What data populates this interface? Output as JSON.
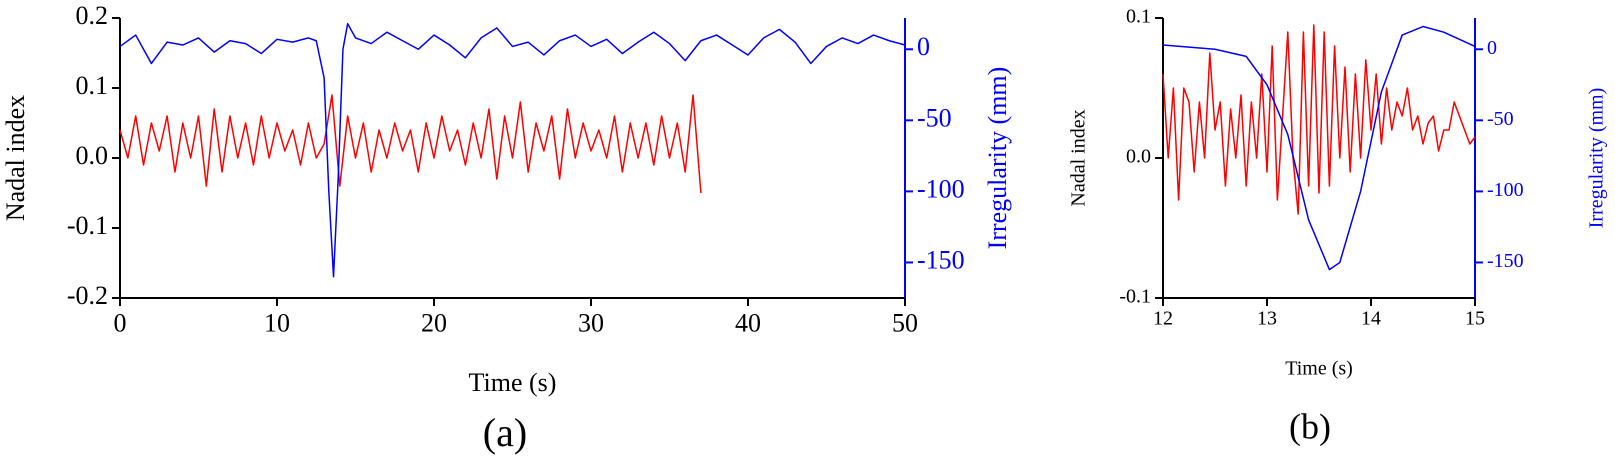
{
  "chart_data": [
    {
      "type": "line",
      "caption": "(a)",
      "xlabel": "Time (s)",
      "ylabel": "Nadal index",
      "y2label": "Irregularity (mm)",
      "xlim": [
        0,
        50
      ],
      "xticks": [
        0,
        10,
        20,
        30,
        40,
        50
      ],
      "ylim": [
        -0.2,
        0.2
      ],
      "yticks": [
        -0.2,
        -0.1,
        {
          "value": 0,
          "label": "0.0"
        },
        0.1,
        0.2
      ],
      "y2lim": [
        -175,
        22
      ],
      "y2ticks": [
        -150,
        -100,
        -50,
        0
      ],
      "series": [
        {
          "color": "#ff0000",
          "axis": "y",
          "x": [
            0,
            0.5,
            1,
            1.5,
            2,
            2.5,
            3,
            3.5,
            4,
            4.5,
            5,
            5.5,
            6,
            6.5,
            7,
            7.5,
            8,
            8.5,
            9,
            9.5,
            10,
            10.5,
            11,
            11.5,
            12,
            12.5,
            13,
            13.5,
            14,
            14.5,
            15,
            15.5,
            16,
            16.5,
            17,
            17.5,
            18,
            18.5,
            19,
            19.5,
            20,
            20.5,
            21,
            21.5,
            22,
            22.5,
            23,
            23.5,
            24,
            24.5,
            25,
            25.5,
            26,
            26.5,
            27,
            27.5,
            28,
            28.5,
            29,
            29.5,
            30,
            30.5,
            31,
            31.5,
            32,
            32.5,
            33,
            33.5,
            34,
            34.5,
            35,
            35.5,
            36,
            36.5,
            37
          ],
          "values": [
            0.04,
            0.0,
            0.06,
            -0.01,
            0.05,
            0.01,
            0.06,
            -0.02,
            0.05,
            0.0,
            0.06,
            -0.04,
            0.07,
            -0.02,
            0.06,
            0.0,
            0.05,
            -0.01,
            0.06,
            0.0,
            0.05,
            0.01,
            0.04,
            -0.01,
            0.05,
            0.0,
            0.02,
            0.09,
            -0.04,
            0.06,
            0.0,
            0.05,
            -0.02,
            0.04,
            0.0,
            0.05,
            0.01,
            0.04,
            -0.02,
            0.05,
            0.0,
            0.06,
            0.01,
            0.04,
            -0.01,
            0.05,
            0.0,
            0.07,
            -0.03,
            0.06,
            0.0,
            0.08,
            -0.02,
            0.05,
            0.01,
            0.06,
            -0.03,
            0.07,
            0.0,
            0.05,
            0.01,
            0.04,
            0.0,
            0.06,
            -0.02,
            0.05,
            0.0,
            0.05,
            -0.01,
            0.06,
            0.0,
            0.05,
            -0.02,
            0.09,
            -0.05
          ]
        },
        {
          "color": "#0000ff",
          "axis": "y2",
          "x": [
            0,
            1,
            2,
            3,
            4,
            5,
            6,
            7,
            8,
            9,
            10,
            11,
            12,
            12.5,
            13,
            13.3,
            13.6,
            13.9,
            14.2,
            14.5,
            15,
            16,
            17,
            18,
            19,
            20,
            21,
            22,
            23,
            24,
            25,
            26,
            27,
            28,
            29,
            30,
            31,
            32,
            33,
            34,
            35,
            36,
            37,
            38,
            39,
            40,
            41,
            42,
            43,
            44,
            45,
            46,
            47,
            48,
            49,
            50
          ],
          "values": [
            2,
            10,
            -10,
            5,
            3,
            8,
            -2,
            6,
            4,
            -3,
            7,
            5,
            8,
            6,
            -20,
            -100,
            -160,
            -90,
            0,
            18,
            8,
            4,
            12,
            6,
            0,
            10,
            3,
            -6,
            8,
            15,
            2,
            5,
            -4,
            6,
            10,
            2,
            7,
            -3,
            5,
            12,
            4,
            -8,
            6,
            10,
            3,
            -4,
            8,
            14,
            5,
            -10,
            2,
            8,
            4,
            10,
            6,
            3
          ]
        }
      ]
    },
    {
      "type": "line",
      "caption": "(b)",
      "xlabel": "Time (s)",
      "ylabel": "Nadal index",
      "y2label": "Irregularity (mm)",
      "xlim": [
        12,
        15
      ],
      "xticks": [
        12,
        13,
        14,
        15
      ],
      "ylim": [
        -0.1,
        0.1
      ],
      "yticks": [
        -0.1,
        {
          "value": 0,
          "label": "0.0"
        },
        0.1
      ],
      "y2lim": [
        -175,
        22
      ],
      "y2ticks": [
        -150,
        -100,
        -50,
        0
      ],
      "series": [
        {
          "color": "#ff0000",
          "axis": "y",
          "x": [
            12,
            12.05,
            12.1,
            12.15,
            12.2,
            12.25,
            12.3,
            12.35,
            12.4,
            12.45,
            12.5,
            12.55,
            12.6,
            12.65,
            12.7,
            12.75,
            12.8,
            12.85,
            12.9,
            12.95,
            13,
            13.05,
            13.1,
            13.15,
            13.2,
            13.25,
            13.3,
            13.35,
            13.4,
            13.45,
            13.5,
            13.55,
            13.6,
            13.65,
            13.7,
            13.75,
            13.8,
            13.85,
            13.9,
            13.95,
            14,
            14.05,
            14.1,
            14.15,
            14.2,
            14.25,
            14.3,
            14.35,
            14.4,
            14.45,
            14.5,
            14.55,
            14.6,
            14.65,
            14.7,
            14.75,
            14.8,
            14.85,
            14.9,
            14.95,
            15
          ],
          "values": [
            0.06,
            0.0,
            0.05,
            -0.03,
            0.05,
            0.04,
            -0.01,
            0.04,
            0.0,
            0.075,
            0.02,
            0.04,
            -0.02,
            0.035,
            0.0,
            0.045,
            -0.02,
            0.04,
            0.0,
            0.06,
            -0.01,
            0.08,
            -0.03,
            0.03,
            0.09,
            0.0,
            -0.04,
            0.09,
            -0.02,
            0.095,
            -0.025,
            0.09,
            -0.02,
            0.08,
            0.0,
            0.065,
            -0.01,
            0.06,
            0.0,
            0.07,
            0.02,
            0.06,
            0.01,
            0.05,
            0.02,
            0.04,
            0.03,
            0.05,
            0.02,
            0.03,
            0.01,
            0.025,
            0.03,
            0.005,
            0.02,
            0.02,
            0.04,
            0.03,
            0.02,
            0.01,
            0.015
          ]
        },
        {
          "color": "#0000ff",
          "axis": "y2",
          "x": [
            12,
            12.5,
            12.8,
            13,
            13.2,
            13.4,
            13.6,
            13.7,
            13.9,
            14.1,
            14.3,
            14.5,
            14.7,
            15
          ],
          "values": [
            3,
            0,
            -5,
            -25,
            -60,
            -120,
            -155,
            -150,
            -100,
            -30,
            10,
            16,
            12,
            2
          ]
        }
      ]
    }
  ]
}
